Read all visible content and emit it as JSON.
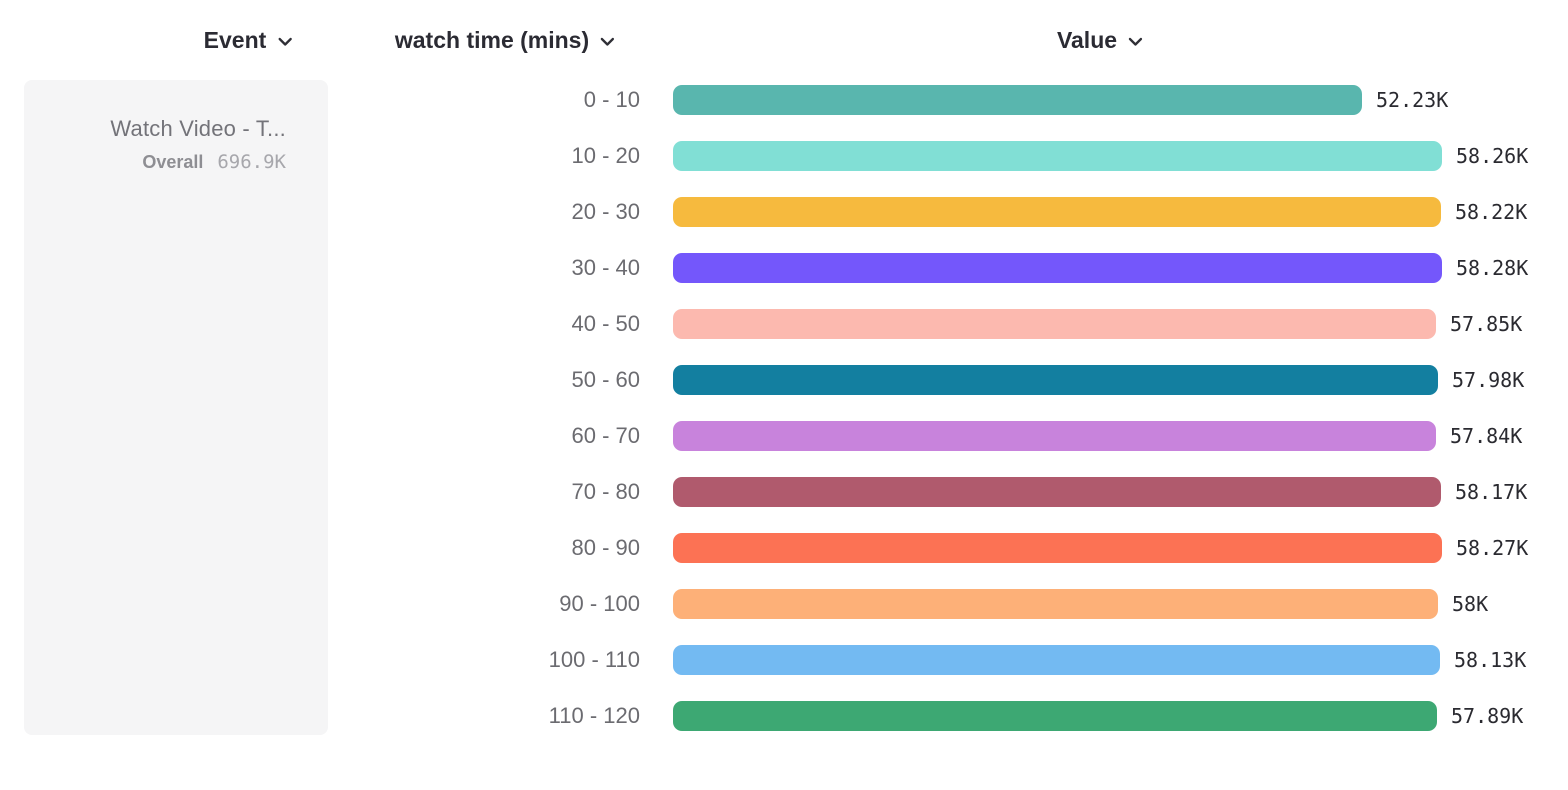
{
  "header": {
    "columns": [
      {
        "label": "Event"
      },
      {
        "label": "watch time (mins)"
      },
      {
        "label": "Value"
      }
    ]
  },
  "event_card": {
    "title": "Watch Video - T...",
    "overall_label": "Overall",
    "overall_value": "696.9K"
  },
  "chart_data": {
    "type": "bar",
    "orientation": "horizontal",
    "title": "",
    "xlabel": "Value",
    "ylabel": "watch time (mins)",
    "legend": false,
    "grid": false,
    "categories": [
      "0 - 10",
      "10 - 20",
      "20 - 30",
      "30 - 40",
      "40 - 50",
      "50 - 60",
      "60 - 70",
      "70 - 80",
      "80 - 90",
      "90 - 100",
      "100 - 110",
      "110 - 120"
    ],
    "values": [
      52230,
      58260,
      58220,
      58280,
      57850,
      57980,
      57840,
      58170,
      58270,
      58000,
      58130,
      57890
    ],
    "value_labels": [
      "52.23K",
      "58.26K",
      "58.22K",
      "58.28K",
      "57.85K",
      "57.98K",
      "57.84K",
      "58.17K",
      "58.27K",
      "58K",
      "58.13K",
      "57.89K"
    ],
    "bar_colors": [
      "#59b6ae",
      "#81dfd5",
      "#f6ba3e",
      "#7457fb",
      "#fcb9af",
      "#137fa0",
      "#c883dc",
      "#b05a6d",
      "#fc7254",
      "#fdb078",
      "#73baf2",
      "#3da873"
    ],
    "xlim": [
      0,
      58280
    ]
  },
  "colors": {
    "header_text": "#2b2b33",
    "category_text": "#6b6b70",
    "card_bg": "#f5f5f6"
  }
}
